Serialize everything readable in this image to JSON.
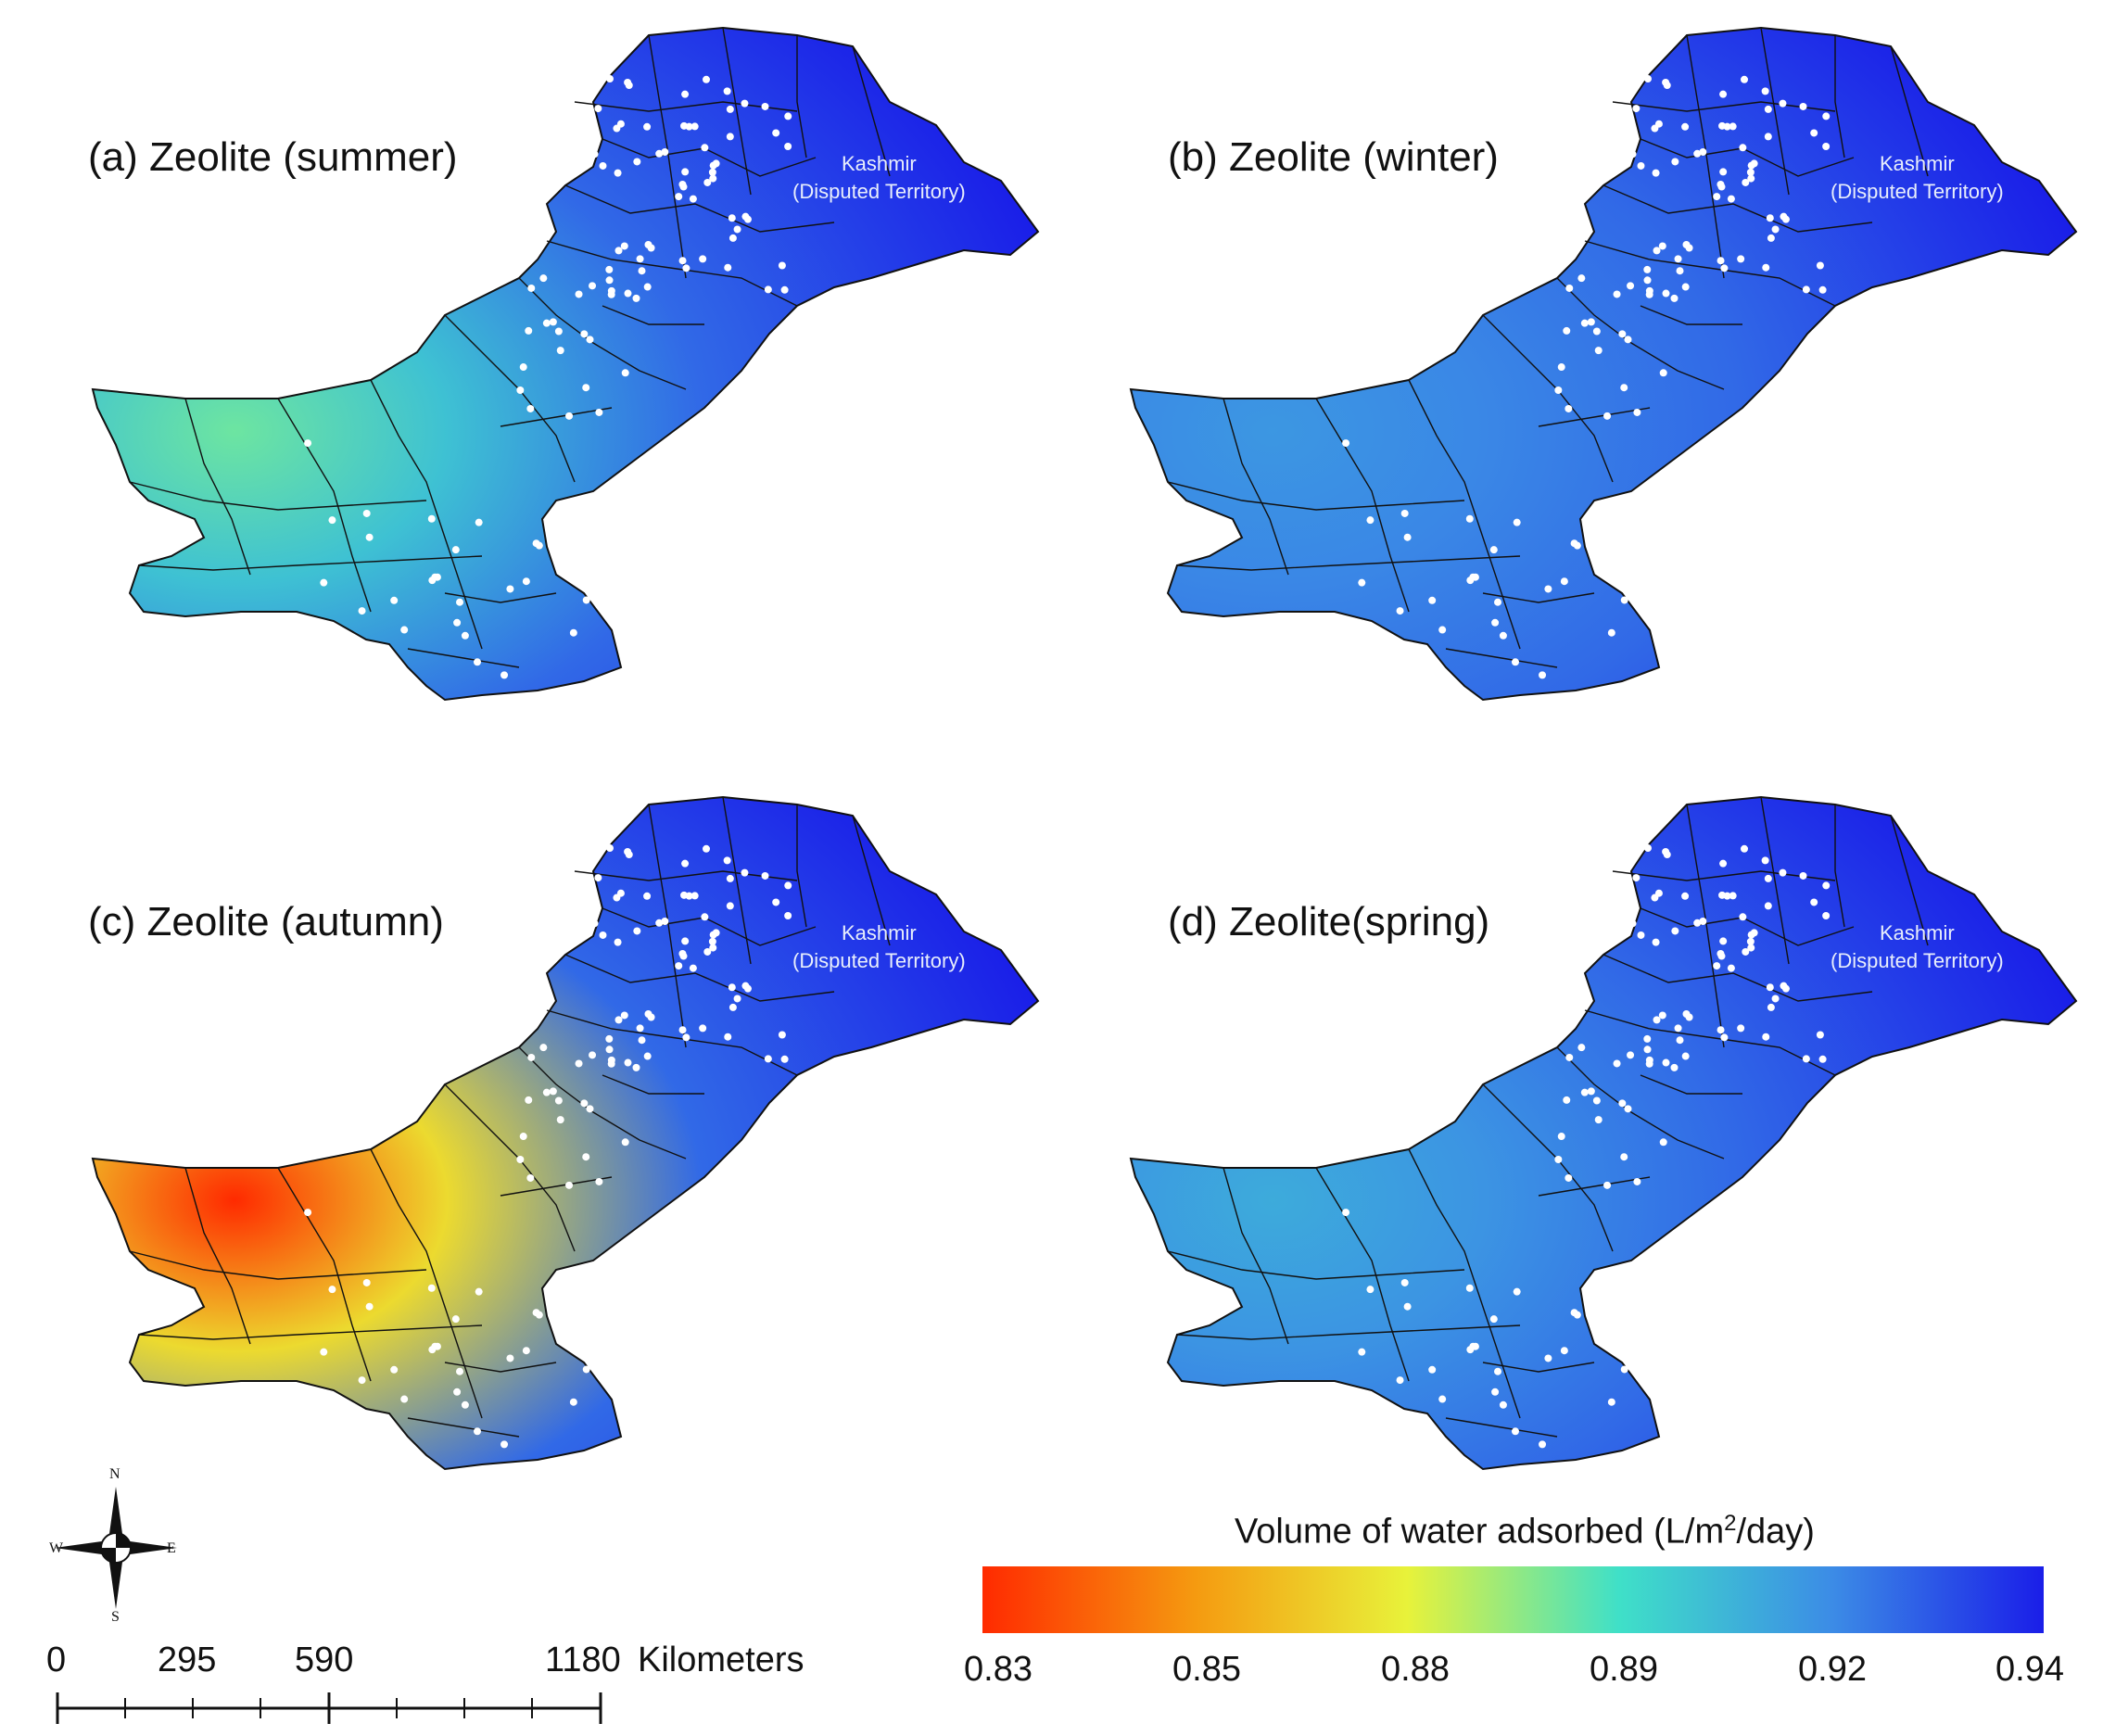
{
  "panels": [
    {
      "title": "(a) Zeolite (summer)",
      "season": "summer",
      "hot_region": {
        "value": 0.89
      },
      "kashmir_label": "Kashmir",
      "kashmir_sub": "(Disputed Territory)"
    },
    {
      "title": "(b) Zeolite (winter)",
      "season": "winter",
      "hot_region": {
        "value": 0.915
      },
      "kashmir_label": "Kashmir",
      "kashmir_sub": "(Disputed Territory)"
    },
    {
      "title": "(c) Zeolite (autumn)",
      "season": "autumn",
      "hot_region": {
        "value": 0.83
      },
      "kashmir_label": "Kashmir",
      "kashmir_sub": "(Disputed Territory)"
    },
    {
      "title": "(d) Zeolite(spring)",
      "season": "spring",
      "hot_region": {
        "value": 0.91
      },
      "kashmir_label": "Kashmir",
      "kashmir_sub": "(Disputed Territory)"
    }
  ],
  "compass": {
    "n": "N",
    "s": "S",
    "e": "E",
    "w": "W"
  },
  "scalebar": {
    "labels": [
      "0",
      "295",
      "590",
      "1180"
    ],
    "unit": "Kilometers"
  },
  "legend": {
    "title_prefix": "Volume of water adsorbed (L/m",
    "title_sup": "2",
    "title_suffix": "/day)",
    "ticks": [
      "0.83",
      "0.85",
      "0.88",
      "0.89",
      "0.92",
      "0.94"
    ],
    "colors": [
      "#ff2a00",
      "#f59a10",
      "#e8f23a",
      "#3fe0c8",
      "#3c8ce6",
      "#1a1ee8"
    ]
  }
}
